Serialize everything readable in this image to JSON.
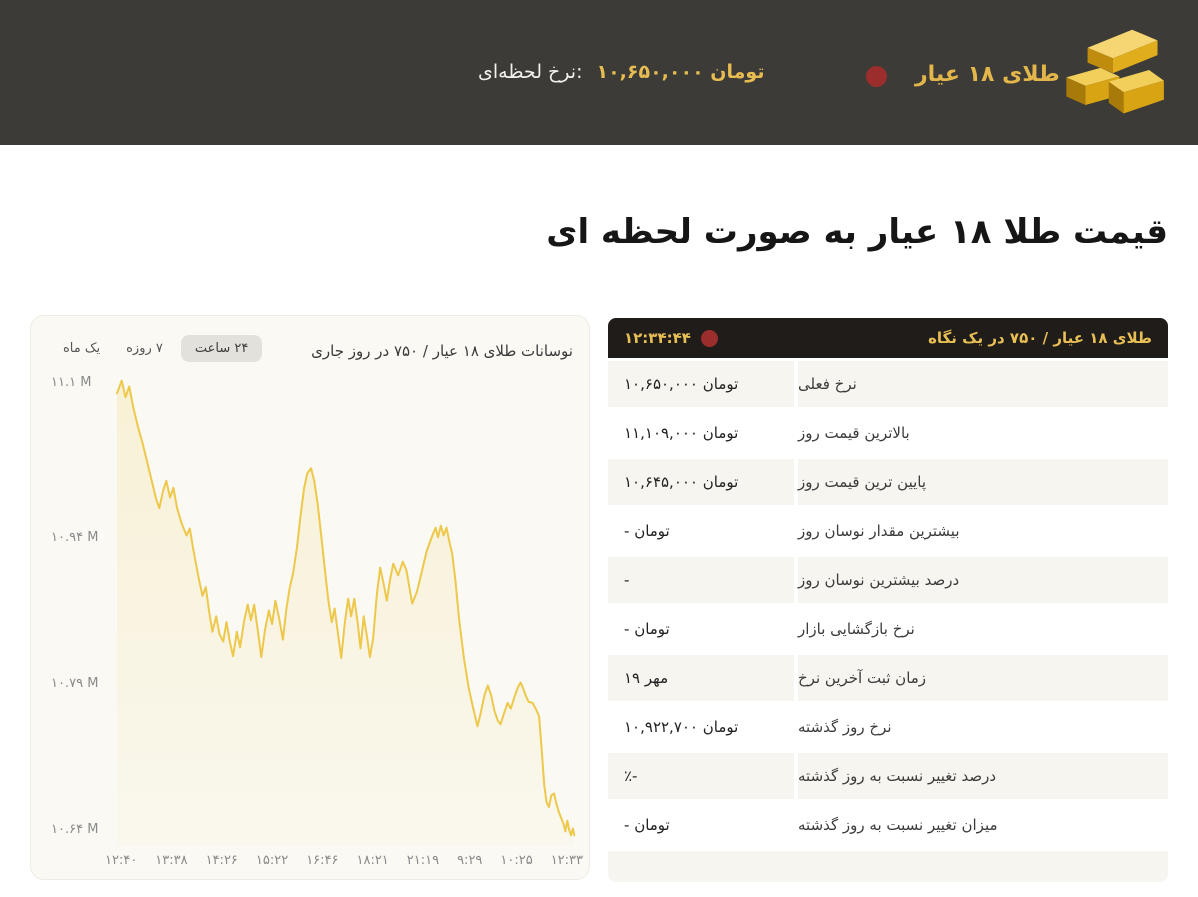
{
  "colors": {
    "header_bg": "#3c3b37",
    "accent_gold": "#e2b64b",
    "dot_red": "#9c2d2d",
    "table_header_bg": "#1f1c19",
    "row_alt_bg": "#f7f5f0",
    "card_bg": "#faf9f4",
    "line_gold": "#edc84b"
  },
  "header": {
    "title": "طلای ۱۸ عیار",
    "rate_label": "نرخ لحظه‌ای:",
    "rate_value": "۱۰,۶۵۰,۰۰۰ تومان",
    "icon": "gold-bars-icon",
    "status_icon": "red-dot"
  },
  "page": {
    "heading": "قیمت طلا ۱۸ عیار به صورت لحظه ای"
  },
  "chart_card": {
    "title": "نوسانات طلای ۱۸ عیار / ۷۵۰ در روز جاری",
    "range_buttons": [
      {
        "label": "یک ماه",
        "active": false
      },
      {
        "label": "۷ روزه",
        "active": false
      },
      {
        "label": "۲۴ ساعت",
        "active": true
      }
    ]
  },
  "chart_data": {
    "type": "line",
    "title": "نوسانات طلای ۱۸ عیار / ۷۵۰ در روز جاری",
    "line_color": "#edc84b",
    "fill_color": "#f0d05a",
    "grid": false,
    "legend": false,
    "ylim": [
      10.625,
      11.115
    ],
    "y_ticks": [
      "۱۱.۱ M",
      "۱۰.۹۴ M",
      "۱۰.۷۹ M",
      "۱۰.۶۴ M"
    ],
    "y_tick_values": [
      11.1,
      10.94,
      10.79,
      10.64
    ],
    "x_ticks": [
      "۱۲:۴۰",
      "۱۳:۳۸",
      "۱۴:۲۶",
      "۱۵:۲۲",
      "۱۶:۴۶",
      "۱۸:۲۱",
      "۲۱:۱۹",
      "۹:۲۹",
      "۱۰:۲۵",
      "۱۲:۳۳"
    ],
    "unit": "million toman",
    "points": [
      [
        0.017,
        11.09
      ],
      [
        0.027,
        11.103
      ],
      [
        0.035,
        11.086
      ],
      [
        0.043,
        11.097
      ],
      [
        0.052,
        11.075
      ],
      [
        0.062,
        11.055
      ],
      [
        0.072,
        11.038
      ],
      [
        0.082,
        11.018
      ],
      [
        0.092,
        10.998
      ],
      [
        0.1,
        10.982
      ],
      [
        0.107,
        10.972
      ],
      [
        0.115,
        10.99
      ],
      [
        0.122,
        11.0
      ],
      [
        0.13,
        10.983
      ],
      [
        0.137,
        10.993
      ],
      [
        0.145,
        10.972
      ],
      [
        0.155,
        10.956
      ],
      [
        0.165,
        10.944
      ],
      [
        0.172,
        10.951
      ],
      [
        0.18,
        10.928
      ],
      [
        0.19,
        10.902
      ],
      [
        0.199,
        10.882
      ],
      [
        0.206,
        10.891
      ],
      [
        0.213,
        10.866
      ],
      [
        0.22,
        10.845
      ],
      [
        0.228,
        10.861
      ],
      [
        0.235,
        10.843
      ],
      [
        0.243,
        10.835
      ],
      [
        0.25,
        10.855
      ],
      [
        0.257,
        10.835
      ],
      [
        0.264,
        10.82
      ],
      [
        0.272,
        10.845
      ],
      [
        0.279,
        10.829
      ],
      [
        0.287,
        10.855
      ],
      [
        0.295,
        10.873
      ],
      [
        0.302,
        10.857
      ],
      [
        0.309,
        10.873
      ],
      [
        0.317,
        10.845
      ],
      [
        0.324,
        10.819
      ],
      [
        0.332,
        10.847
      ],
      [
        0.34,
        10.867
      ],
      [
        0.347,
        10.853
      ],
      [
        0.354,
        10.877
      ],
      [
        0.362,
        10.859
      ],
      [
        0.37,
        10.837
      ],
      [
        0.377,
        10.867
      ],
      [
        0.384,
        10.889
      ],
      [
        0.392,
        10.906
      ],
      [
        0.4,
        10.932
      ],
      [
        0.407,
        10.962
      ],
      [
        0.415,
        10.992
      ],
      [
        0.422,
        11.008
      ],
      [
        0.43,
        11.013
      ],
      [
        0.437,
        10.999
      ],
      [
        0.444,
        10.976
      ],
      [
        0.452,
        10.942
      ],
      [
        0.46,
        10.906
      ],
      [
        0.467,
        10.876
      ],
      [
        0.474,
        10.855
      ],
      [
        0.48,
        10.869
      ],
      [
        0.487,
        10.844
      ],
      [
        0.494,
        10.818
      ],
      [
        0.502,
        10.855
      ],
      [
        0.509,
        10.879
      ],
      [
        0.515,
        10.861
      ],
      [
        0.522,
        10.879
      ],
      [
        0.529,
        10.855
      ],
      [
        0.535,
        10.828
      ],
      [
        0.542,
        10.861
      ],
      [
        0.549,
        10.84
      ],
      [
        0.555,
        10.819
      ],
      [
        0.562,
        10.838
      ],
      [
        0.57,
        10.884
      ],
      [
        0.577,
        10.911
      ],
      [
        0.584,
        10.895
      ],
      [
        0.591,
        10.877
      ],
      [
        0.598,
        10.899
      ],
      [
        0.605,
        10.915
      ],
      [
        0.615,
        10.903
      ],
      [
        0.625,
        10.917
      ],
      [
        0.633,
        10.908
      ],
      [
        0.645,
        10.874
      ],
      [
        0.655,
        10.886
      ],
      [
        0.665,
        10.906
      ],
      [
        0.676,
        10.928
      ],
      [
        0.688,
        10.944
      ],
      [
        0.695,
        10.952
      ],
      [
        0.7,
        10.942
      ],
      [
        0.706,
        10.954
      ],
      [
        0.712,
        10.944
      ],
      [
        0.718,
        10.952
      ],
      [
        0.724,
        10.938
      ],
      [
        0.73,
        10.926
      ],
      [
        0.737,
        10.898
      ],
      [
        0.745,
        10.858
      ],
      [
        0.755,
        10.818
      ],
      [
        0.765,
        10.788
      ],
      [
        0.775,
        10.766
      ],
      [
        0.784,
        10.748
      ],
      [
        0.791,
        10.762
      ],
      [
        0.799,
        10.78
      ],
      [
        0.806,
        10.79
      ],
      [
        0.813,
        10.78
      ],
      [
        0.82,
        10.764
      ],
      [
        0.827,
        10.754
      ],
      [
        0.833,
        10.75
      ],
      [
        0.841,
        10.762
      ],
      [
        0.848,
        10.772
      ],
      [
        0.855,
        10.766
      ],
      [
        0.862,
        10.777
      ],
      [
        0.87,
        10.788
      ],
      [
        0.876,
        10.793
      ],
      [
        0.881,
        10.787
      ],
      [
        0.887,
        10.779
      ],
      [
        0.893,
        10.773
      ],
      [
        0.901,
        10.772
      ],
      [
        0.908,
        10.766
      ],
      [
        0.915,
        10.758
      ],
      [
        0.92,
        10.728
      ],
      [
        0.926,
        10.688
      ],
      [
        0.931,
        10.67
      ],
      [
        0.936,
        10.665
      ],
      [
        0.941,
        10.677
      ],
      [
        0.947,
        10.679
      ],
      [
        0.951,
        10.67
      ],
      [
        0.957,
        10.66
      ],
      [
        0.962,
        10.654
      ],
      [
        0.967,
        10.648
      ],
      [
        0.971,
        10.64
      ],
      [
        0.975,
        10.651
      ],
      [
        0.979,
        10.642
      ],
      [
        0.983,
        10.636
      ],
      [
        0.987,
        10.643
      ],
      [
        0.99,
        10.636
      ]
    ]
  },
  "table": {
    "header": {
      "title": "طلای ۱۸ عیار / ۷۵۰ در یک نگاه",
      "time": "۱۲:۳۴:۴۴",
      "status_icon": "red-dot"
    },
    "rows": [
      {
        "label": "نرخ فعلی",
        "value": "۱۰,۶۵۰,۰۰۰ تومان"
      },
      {
        "label": "بالاترین قیمت روز",
        "value": "۱۱,۱۰۹,۰۰۰ تومان"
      },
      {
        "label": "پایین ترین قیمت روز",
        "value": "۱۰,۶۴۵,۰۰۰ تومان"
      },
      {
        "label": "بیشترین مقدار نوسان روز",
        "value": "- تومان"
      },
      {
        "label": "درصد بیشترین نوسان روز",
        "value": "-"
      },
      {
        "label": "نرخ بازگشایی بازار",
        "value": "- تومان"
      },
      {
        "label": "زمان ثبت آخرین نرخ",
        "value": "۱۹ مهر"
      },
      {
        "label": "نرخ روز گذشته",
        "value": "۱۰,۹۲۲,۷۰۰ تومان"
      },
      {
        "label": "درصد تغییر نسبت به روز گذشته",
        "value": "٪-"
      },
      {
        "label": "میزان تغییر نسبت به روز گذشته",
        "value": "- تومان"
      }
    ]
  }
}
